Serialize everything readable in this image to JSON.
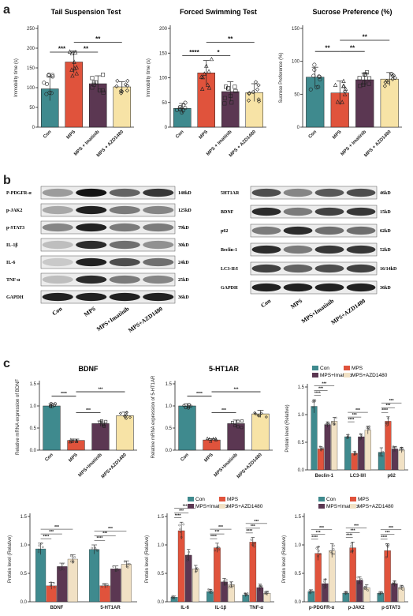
{
  "panel_labels": {
    "a": "a",
    "b": "b",
    "c": "c"
  },
  "colors": {
    "con": "#3f8a8e",
    "mps": "#e0533c",
    "imatinib": "#5b3752",
    "azd": "#f7e3a6",
    "azd_lc": "#f1e1c4"
  },
  "chart_data": [
    {
      "id": "tail",
      "type": "bar",
      "title": "Tail Suspension Test",
      "ylabel": "Immobility time (s)",
      "categories": [
        "Con",
        "MPS",
        "MPS + Imatinib",
        "MPS + AZD1480"
      ],
      "values": [
        97,
        165,
        110,
        102
      ],
      "errors": [
        30,
        28,
        20,
        13
      ],
      "ylim": [
        0,
        250
      ],
      "yticks": [
        0,
        50,
        100,
        150,
        200,
        250
      ],
      "significance": [
        {
          "from": 0,
          "to": 1,
          "label": "***",
          "y": 190
        },
        {
          "from": 1,
          "to": 2,
          "label": "**",
          "y": 190
        },
        {
          "from": 1,
          "to": 3,
          "label": "**",
          "y": 215
        }
      ]
    },
    {
      "id": "forced",
      "type": "bar",
      "title": "Forced Swimming Test",
      "ylabel": "Immobility time (s)",
      "categories": [
        "Con",
        "MPS",
        "MPS + Imatinib",
        "MPS + AZD1480"
      ],
      "values": [
        38,
        110,
        72,
        70
      ],
      "errors": [
        10,
        25,
        20,
        18
      ],
      "ylim": [
        0,
        200
      ],
      "yticks": [
        0,
        50,
        100,
        150,
        200
      ],
      "significance": [
        {
          "from": 0,
          "to": 1,
          "label": "****",
          "y": 145
        },
        {
          "from": 1,
          "to": 2,
          "label": "*",
          "y": 145
        },
        {
          "from": 1,
          "to": 3,
          "label": "**",
          "y": 172
        }
      ]
    },
    {
      "id": "sucrose",
      "type": "bar",
      "title": "Sucrose Preference (%)",
      "ylabel": "Sucrose Preference (%)",
      "categories": [
        "Con",
        "MPS",
        "MPS + Imatinib",
        "MPS + AZD1480"
      ],
      "values": [
        76,
        52,
        72,
        73
      ],
      "errors": [
        15,
        18,
        10,
        10
      ],
      "ylim": [
        0,
        150
      ],
      "yticks": [
        0,
        50,
        100,
        150
      ],
      "significance": [
        {
          "from": 0,
          "to": 1,
          "label": "**",
          "y": 115
        },
        {
          "from": 1,
          "to": 2,
          "label": "**",
          "y": 115
        },
        {
          "from": 1,
          "to": 3,
          "label": "**",
          "y": 132
        }
      ]
    },
    {
      "id": "bdnf_mrna",
      "type": "bar",
      "title": "BDNF",
      "ylabel": "Relative mRNA expression of BDNF",
      "categories": [
        "Con",
        "MPS",
        "MPS+Imatinib",
        "MPS+AZD1480"
      ],
      "values": [
        1.0,
        0.22,
        0.6,
        0.78
      ],
      "errors": [
        0.05,
        0.03,
        0.06,
        0.08
      ],
      "ylim": [
        0,
        1.5
      ],
      "yticks": [
        0.0,
        0.5,
        1.0,
        1.5
      ],
      "significance": [
        {
          "from": 0,
          "to": 1,
          "label": "****",
          "y": 1.22
        },
        {
          "from": 1,
          "to": 2,
          "label": "***",
          "y": 0.85
        },
        {
          "from": 1,
          "to": 3,
          "label": "***",
          "y": 1.32
        }
      ]
    },
    {
      "id": "ht1ar_mrna",
      "type": "bar",
      "title": "5-HT1AR",
      "ylabel": "Relative mRNA expression of 5-HT1AR",
      "categories": [
        "Con",
        "MPS",
        "MPS+Imatinib",
        "MPS+AZD1480"
      ],
      "values": [
        1.0,
        0.23,
        0.6,
        0.82
      ],
      "errors": [
        0.05,
        0.03,
        0.08,
        0.08
      ],
      "ylim": [
        0,
        1.5
      ],
      "yticks": [
        0.0,
        0.5,
        1.0,
        1.5
      ],
      "significance": [
        {
          "from": 0,
          "to": 1,
          "label": "****",
          "y": 1.22
        },
        {
          "from": 1,
          "to": 2,
          "label": "***",
          "y": 0.85
        },
        {
          "from": 1,
          "to": 3,
          "label": "***",
          "y": 1.32
        }
      ]
    },
    {
      "id": "autophagy",
      "type": "bar",
      "ylabel": "Protein level (Relative)",
      "categories": [
        "Beclin-1",
        "LC3-II/I",
        "p62"
      ],
      "legend": [
        "Con",
        "MPS",
        "MPS+Imatinib",
        "MPS+AZD1480"
      ],
      "series": [
        {
          "name": "Con",
          "values": [
            1.15,
            0.6,
            0.32
          ],
          "errors": [
            0.12,
            0.04,
            0.08
          ]
        },
        {
          "name": "MPS",
          "values": [
            0.38,
            0.3,
            0.88
          ],
          "errors": [
            0.04,
            0.03,
            0.08
          ]
        },
        {
          "name": "MPS+Imatinib",
          "values": [
            0.82,
            0.6,
            0.38
          ],
          "errors": [
            0.05,
            0.05,
            0.04
          ]
        },
        {
          "name": "MPS+AZD1480",
          "values": [
            0.88,
            0.72,
            0.36
          ],
          "errors": [
            0.07,
            0.07,
            0.05
          ]
        }
      ],
      "ylim": [
        0,
        1.5
      ],
      "yticks": [
        0.0,
        0.5,
        1.0,
        1.5
      ]
    },
    {
      "id": "bdnf_protein",
      "type": "bar",
      "ylabel": "Protein level (Relative)",
      "categories": [
        "BDNF",
        "5-HT1AR"
      ],
      "series": [
        {
          "name": "Con",
          "values": [
            0.93,
            0.92
          ],
          "errors": [
            0.1,
            0.08
          ]
        },
        {
          "name": "MPS",
          "values": [
            0.28,
            0.28
          ],
          "errors": [
            0.06,
            0.04
          ]
        },
        {
          "name": "MPS+Imatinib",
          "values": [
            0.62,
            0.58
          ],
          "errors": [
            0.06,
            0.05
          ]
        },
        {
          "name": "MPS+AZD1480",
          "values": [
            0.75,
            0.66
          ],
          "errors": [
            0.08,
            0.06
          ]
        }
      ],
      "ylim": [
        0,
        1.5
      ],
      "yticks": [
        0.0,
        0.5,
        1.0,
        1.5
      ]
    },
    {
      "id": "cytokines",
      "type": "bar",
      "ylabel": "Protein level (Relative)",
      "categories": [
        "IL-6",
        "IL-1β",
        "TNF-α"
      ],
      "legend": [
        "Con",
        "MPS",
        "MPS+Imatinib",
        "MPS+AZD1480"
      ],
      "series": [
        {
          "name": "Con",
          "values": [
            0.08,
            0.18,
            0.12
          ],
          "errors": [
            0.02,
            0.04,
            0.03
          ]
        },
        {
          "name": "MPS",
          "values": [
            1.25,
            0.95,
            1.05
          ],
          "errors": [
            0.15,
            0.08,
            0.08
          ]
        },
        {
          "name": "MPS+Imatinib",
          "values": [
            0.82,
            0.35,
            0.25
          ],
          "errors": [
            0.1,
            0.06,
            0.06
          ]
        },
        {
          "name": "MPS+AZD1480",
          "values": [
            0.58,
            0.3,
            0.15
          ],
          "errors": [
            0.06,
            0.05,
            0.04
          ]
        }
      ],
      "ylim": [
        0,
        1.5
      ],
      "yticks": [
        0.0,
        0.5,
        1.0,
        1.5
      ]
    },
    {
      "id": "phospho",
      "type": "bar",
      "ylabel": "Protein level (Relative)",
      "categories": [
        "p-PDGFR-α",
        "p-JAK2",
        "p-STAT3"
      ],
      "legend": [
        "Con",
        "MPS",
        "MPS+Imatinib",
        "MPS+AZD1480"
      ],
      "series": [
        {
          "name": "Con",
          "values": [
            0.18,
            0.15,
            0.15
          ],
          "errors": [
            0.03,
            0.03,
            0.03
          ]
        },
        {
          "name": "MPS",
          "values": [
            0.85,
            0.95,
            0.9
          ],
          "errors": [
            0.12,
            0.1,
            0.12
          ]
        },
        {
          "name": "MPS+Imatinib",
          "values": [
            0.32,
            0.38,
            0.32
          ],
          "errors": [
            0.08,
            0.06,
            0.05
          ]
        },
        {
          "name": "MPS+AZD1480",
          "values": [
            0.9,
            0.25,
            0.25
          ],
          "errors": [
            0.12,
            0.05,
            0.04
          ]
        }
      ],
      "ylim": [
        0,
        1.5
      ],
      "yticks": [
        0.0,
        0.5,
        1.0,
        1.5
      ]
    }
  ],
  "blots": {
    "left": {
      "rows": [
        {
          "label": "P-PDGFR-α",
          "kd": "140kD",
          "intensity": [
            0.35,
            0.95,
            0.6,
            0.8
          ]
        },
        {
          "label": "p-JAK2",
          "kd": "125kD",
          "intensity": [
            0.3,
            0.9,
            0.5,
            0.45
          ]
        },
        {
          "label": "p-STAT3",
          "kd": "79kD",
          "intensity": [
            0.45,
            0.9,
            0.5,
            0.5
          ]
        },
        {
          "label": "IL-1β",
          "kd": "30kD",
          "intensity": [
            0.2,
            0.85,
            0.55,
            0.4
          ]
        },
        {
          "label": "IL-6",
          "kd": "24kD",
          "intensity": [
            0.15,
            0.9,
            0.7,
            0.55
          ]
        },
        {
          "label": "TNF-α",
          "kd": "25kD",
          "intensity": [
            0.2,
            0.85,
            0.5,
            0.45
          ]
        },
        {
          "label": "GAPDH",
          "kd": "36kD",
          "intensity": [
            0.9,
            0.9,
            0.9,
            0.9
          ]
        }
      ],
      "lanes": [
        "Con",
        "MPS",
        "MPS+Imatinib",
        "MPS+AZD1480"
      ]
    },
    "right": {
      "rows": [
        {
          "label": "5HT1AR",
          "kd": "46kD",
          "intensity": [
            0.7,
            0.45,
            0.65,
            0.7
          ]
        },
        {
          "label": "BDNF",
          "kd": "15kD",
          "intensity": [
            0.85,
            0.5,
            0.75,
            0.8
          ]
        },
        {
          "label": "p62",
          "kd": "62kD",
          "intensity": [
            0.5,
            0.85,
            0.55,
            0.55
          ]
        },
        {
          "label": "Beclin-1",
          "kd": "52kD",
          "intensity": [
            0.85,
            0.5,
            0.8,
            0.8
          ]
        },
        {
          "label": "LC3-II/I",
          "kd": "16/14kD",
          "intensity": [
            0.75,
            0.6,
            0.7,
            0.75
          ]
        },
        {
          "label": "GAPDH",
          "kd": "36kD",
          "intensity": [
            0.9,
            0.9,
            0.9,
            0.9
          ]
        }
      ],
      "lanes": [
        "Con",
        "MPS",
        "MPS+Imatinib",
        "MPS+AZD1480"
      ]
    }
  }
}
